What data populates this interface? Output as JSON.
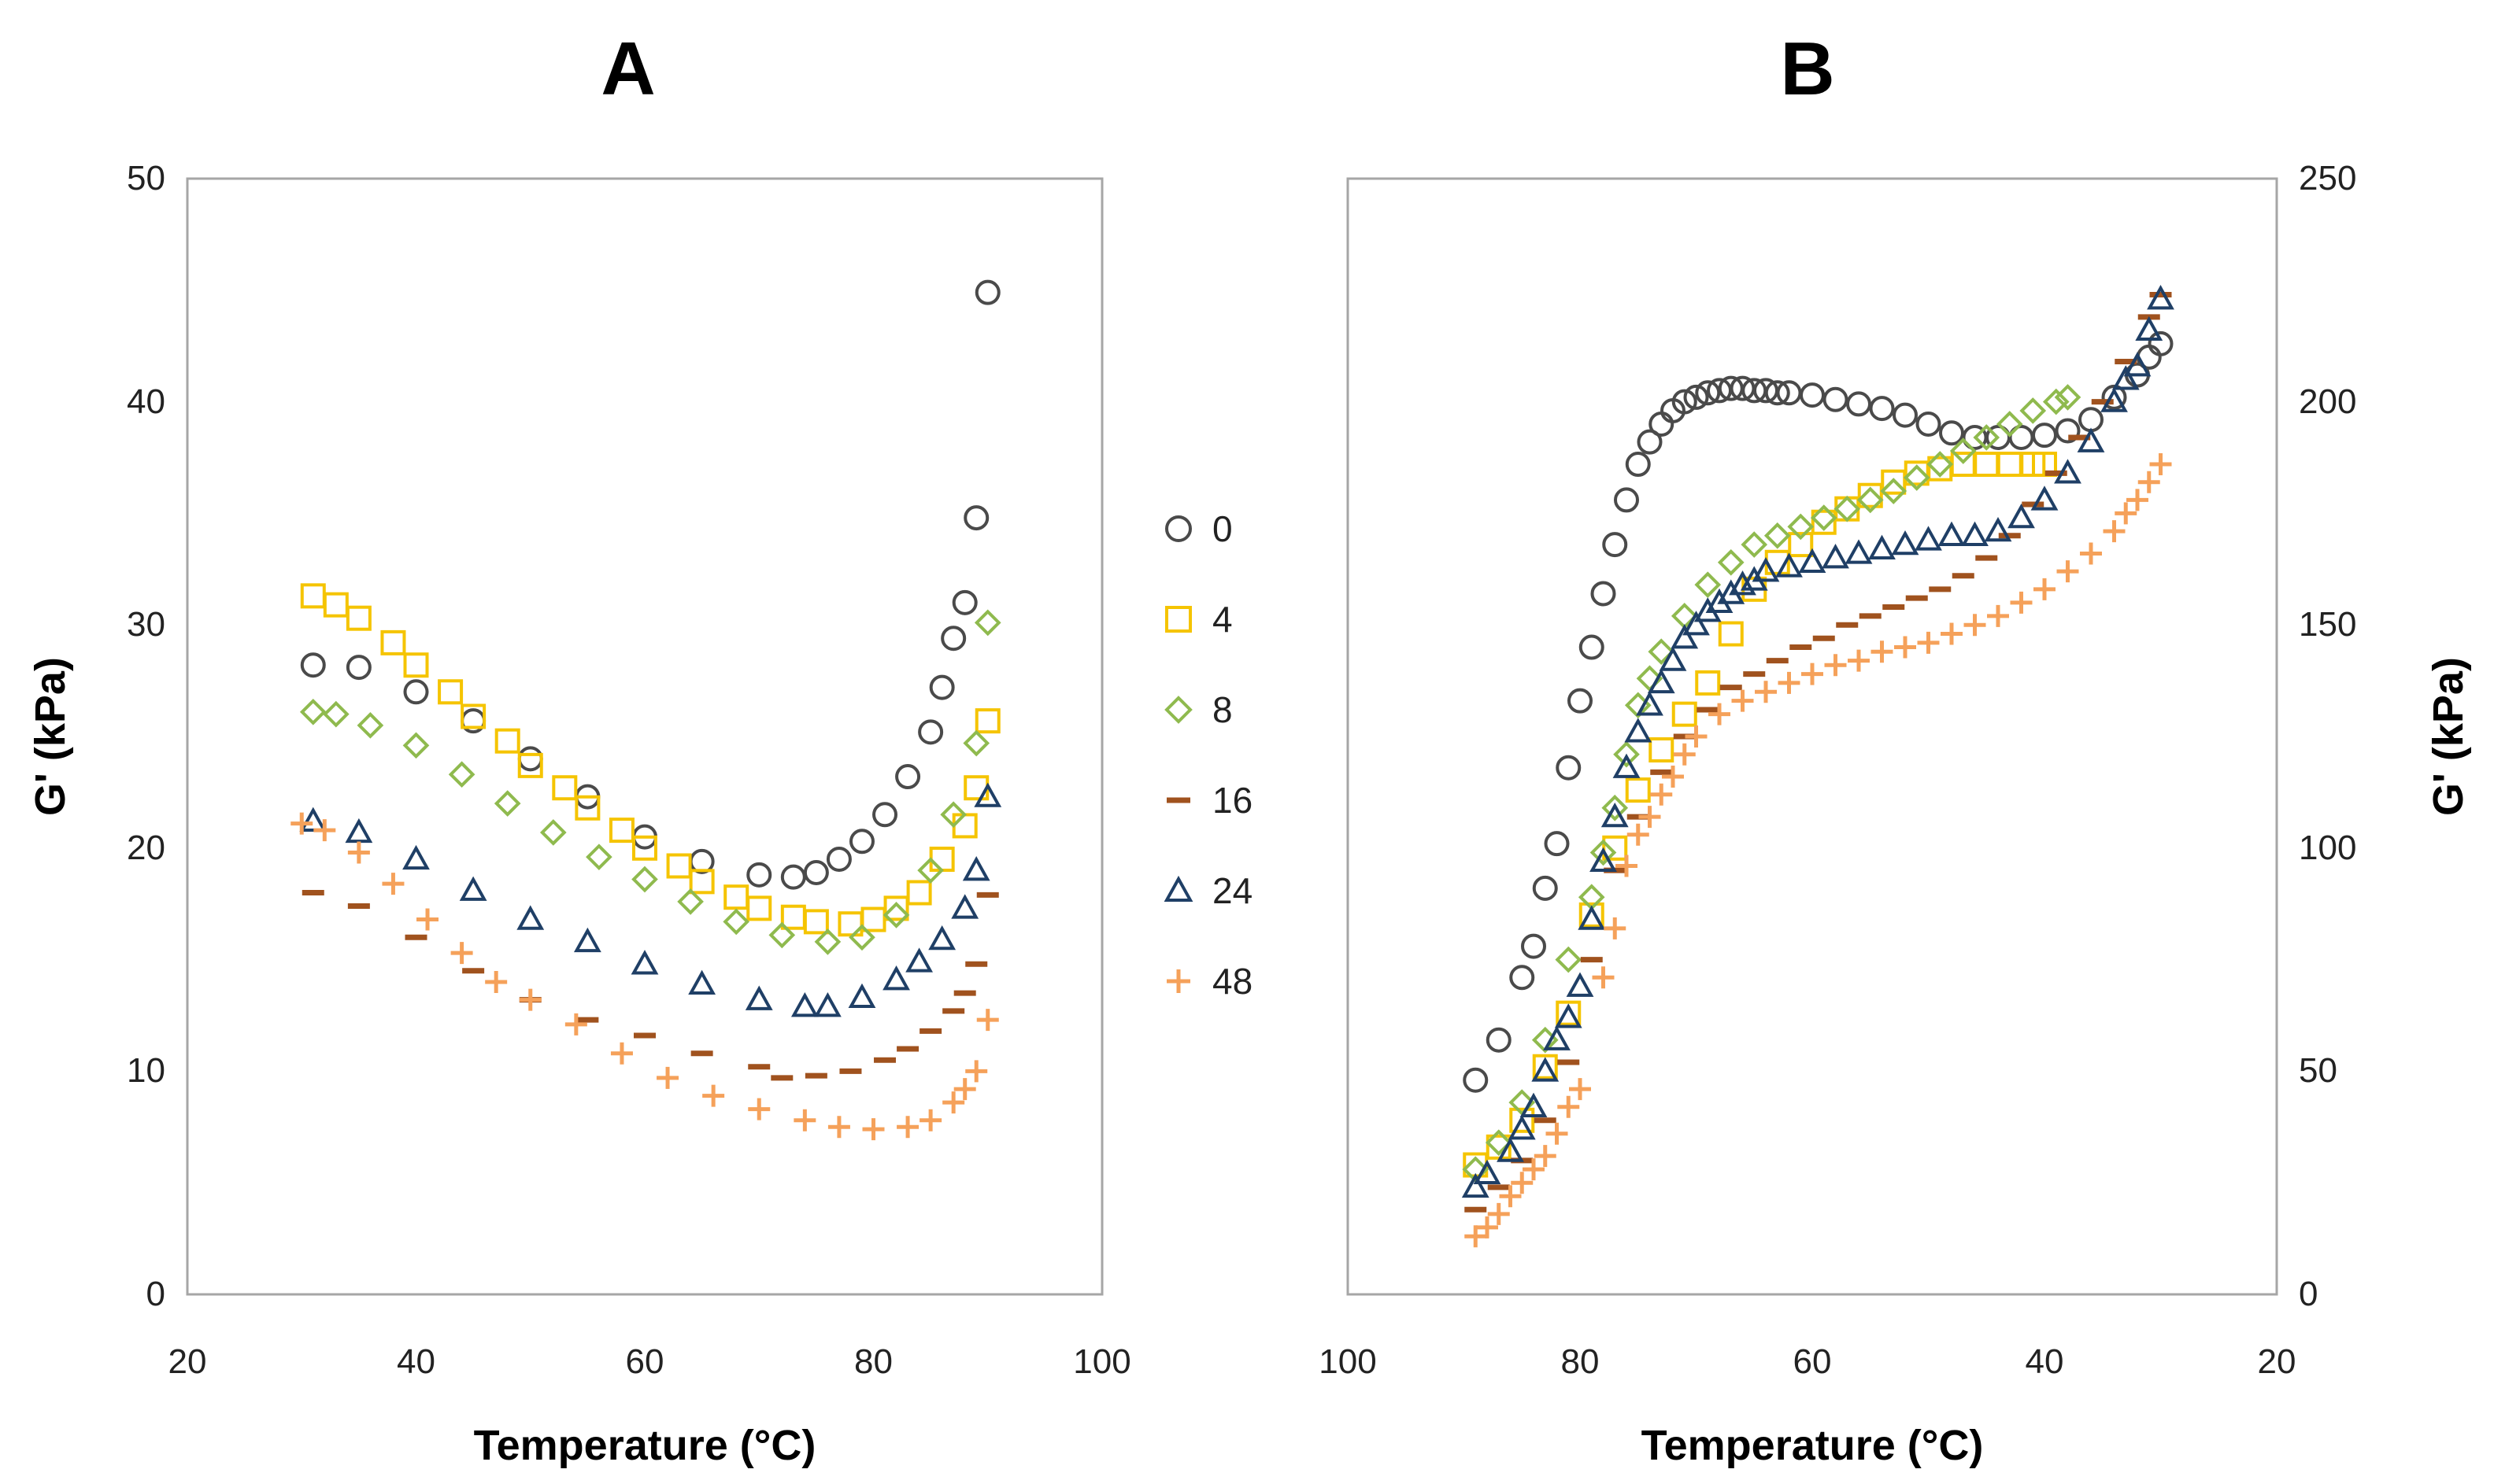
{
  "chart_data": [
    {
      "id": "A",
      "type": "scatter",
      "title": "A",
      "xlabel": "Temperature (°C)",
      "ylabel": "G' (kPa)",
      "xlim": [
        20,
        100
      ],
      "ylim": [
        0,
        50
      ],
      "xticks": [
        "20",
        "40",
        "60",
        "80",
        "100"
      ],
      "yticks": [
        "0",
        "10",
        "20",
        "30",
        "40",
        "50"
      ],
      "series": [
        {
          "name": "0",
          "x": [
            31,
            35,
            40,
            45,
            50,
            55,
            60,
            65,
            70,
            73,
            75,
            77,
            79,
            81,
            83,
            85,
            86,
            87,
            88,
            89,
            90
          ],
          "y": [
            28.2,
            28.1,
            27.0,
            25.7,
            24.0,
            22.3,
            20.5,
            19.4,
            18.8,
            18.7,
            18.9,
            19.5,
            20.3,
            21.5,
            23.2,
            25.2,
            27.2,
            29.4,
            31.0,
            34.8,
            44.9
          ]
        },
        {
          "name": "4",
          "x": [
            31,
            33,
            35,
            38,
            40,
            43,
            45,
            48,
            50,
            53,
            55,
            58,
            60,
            63,
            65,
            68,
            70,
            73,
            75,
            78,
            80,
            82,
            84,
            86,
            88,
            89,
            90
          ],
          "y": [
            31.3,
            30.9,
            30.3,
            29.2,
            28.2,
            27.0,
            25.9,
            24.8,
            23.7,
            22.7,
            21.8,
            20.8,
            20.0,
            19.2,
            18.5,
            17.8,
            17.3,
            16.9,
            16.7,
            16.6,
            16.8,
            17.3,
            18.0,
            19.5,
            21.0,
            22.7,
            25.7
          ]
        },
        {
          "name": "8",
          "x": [
            31,
            33,
            36,
            40,
            44,
            48,
            52,
            56,
            60,
            64,
            68,
            72,
            76,
            79,
            82,
            85,
            87,
            89,
            90
          ],
          "y": [
            26.1,
            26.0,
            25.5,
            24.6,
            23.3,
            22.0,
            20.7,
            19.6,
            18.6,
            17.6,
            16.7,
            16.1,
            15.8,
            16.0,
            17.0,
            19.0,
            21.5,
            24.7,
            30.1
          ]
        },
        {
          "name": "16",
          "x": [
            31,
            35,
            40,
            45,
            50,
            55,
            60,
            65,
            70,
            72,
            75,
            78,
            81,
            83,
            85,
            87,
            88,
            89,
            90
          ],
          "y": [
            18.0,
            17.4,
            16.0,
            14.5,
            13.2,
            12.3,
            11.6,
            10.8,
            10.2,
            9.7,
            9.8,
            10.0,
            10.5,
            11.0,
            11.8,
            12.7,
            13.5,
            14.8,
            17.9
          ]
        },
        {
          "name": "24",
          "x": [
            31,
            35,
            40,
            45,
            50,
            55,
            60,
            65,
            70,
            74,
            76,
            79,
            82,
            84,
            86,
            88,
            89,
            90
          ],
          "y": [
            21.2,
            20.7,
            19.5,
            18.1,
            16.8,
            15.8,
            14.8,
            13.9,
            13.2,
            12.9,
            12.9,
            13.3,
            14.1,
            14.9,
            15.9,
            17.3,
            19.0,
            22.3
          ]
        },
        {
          "name": "48",
          "x": [
            30,
            32,
            35,
            38,
            41,
            44,
            47,
            50,
            54,
            58,
            62,
            66,
            70,
            74,
            77,
            80,
            83,
            85,
            87,
            88,
            89,
            90
          ],
          "y": [
            21.1,
            20.8,
            19.8,
            18.4,
            16.8,
            15.3,
            14.0,
            13.2,
            12.1,
            10.8,
            9.7,
            8.9,
            8.3,
            7.8,
            7.5,
            7.4,
            7.5,
            7.8,
            8.6,
            9.2,
            10.0,
            12.3
          ]
        }
      ]
    },
    {
      "id": "B",
      "type": "scatter",
      "title": "B",
      "xlabel": "Temperature (°C)",
      "ylabel": "G' (kPa)",
      "xlim": [
        100,
        20
      ],
      "ylim": [
        0,
        250
      ],
      "xticks": [
        "100",
        "80",
        "60",
        "40",
        "20"
      ],
      "yticks": [
        "0",
        "50",
        "100",
        "150",
        "200",
        "250"
      ],
      "series": [
        {
          "name": "0",
          "x": [
            89,
            87,
            85,
            84,
            83,
            82,
            81,
            80,
            79,
            78,
            77,
            76,
            75,
            74,
            73,
            72,
            71,
            70,
            69,
            68,
            67,
            66,
            65,
            64,
            63,
            62,
            60,
            58,
            56,
            54,
            52,
            50,
            48,
            46,
            44,
            42,
            40,
            38,
            36,
            34,
            32,
            31,
            30
          ],
          "y": [
            48,
            57,
            71,
            78,
            91,
            101,
            118,
            133,
            145,
            157,
            168,
            178,
            186,
            191,
            195,
            198,
            200,
            201,
            202,
            202.5,
            203,
            203,
            202.5,
            202.5,
            202,
            202,
            201.5,
            200.5,
            199.5,
            198.5,
            197,
            195,
            193,
            192,
            192,
            192,
            192.5,
            193.5,
            196,
            201,
            206,
            210,
            213
          ]
        },
        {
          "name": "4",
          "x": [
            89,
            87,
            85,
            83,
            81,
            79,
            77,
            75,
            73,
            71,
            69,
            67,
            65,
            63,
            61,
            59,
            57,
            55,
            53,
            51,
            49,
            47,
            45,
            43,
            41,
            40
          ],
          "y": [
            29,
            33,
            39,
            51,
            63,
            85,
            100,
            113,
            122,
            130,
            137,
            148,
            158,
            164,
            168,
            173,
            176,
            179,
            182,
            184,
            185,
            186,
            186,
            186,
            186,
            186
          ]
        },
        {
          "name": "8",
          "x": [
            89,
            87,
            85,
            83,
            81,
            79,
            78,
            77,
            76,
            75,
            74,
            73,
            71,
            69,
            67,
            65,
            63,
            61,
            59,
            57,
            55,
            53,
            51,
            49,
            47,
            45,
            43,
            41,
            39,
            38
          ],
          "y": [
            28,
            34,
            43,
            57,
            75,
            89,
            99,
            109,
            121,
            132,
            138,
            144,
            152,
            159,
            164,
            168,
            170,
            172,
            174,
            176,
            178,
            180,
            183,
            186,
            189,
            192,
            195,
            198,
            200,
            201
          ]
        },
        {
          "name": "16",
          "x": [
            89,
            87,
            85,
            83,
            81,
            79,
            77,
            75,
            73,
            71,
            69,
            67,
            65,
            63,
            61,
            59,
            57,
            55,
            53,
            51,
            49,
            47,
            45,
            43,
            41,
            39,
            37,
            35,
            33,
            31,
            30
          ],
          "y": [
            19,
            24,
            30,
            39,
            52,
            75,
            95,
            107,
            117,
            125,
            131,
            136,
            139,
            142,
            145,
            147,
            150,
            152,
            154,
            156,
            158,
            161,
            165,
            170,
            177,
            184,
            192,
            200,
            209,
            219,
            224
          ]
        },
        {
          "name": "24",
          "x": [
            89,
            88,
            86,
            85,
            84,
            83,
            82,
            81,
            80,
            79,
            78,
            77,
            76,
            75,
            74,
            73,
            72,
            71,
            70,
            69,
            68,
            67,
            66,
            65,
            64,
            62,
            60,
            58,
            56,
            54,
            52,
            50,
            48,
            46,
            44,
            42,
            40,
            38,
            36,
            34,
            33,
            32,
            31,
            30
          ],
          "y": [
            24,
            27,
            32,
            37,
            42,
            50,
            57,
            62,
            69,
            84,
            97,
            107,
            118,
            126,
            132,
            137,
            142,
            147,
            150,
            153,
            155,
            157,
            159,
            160,
            162,
            163,
            164,
            165,
            166,
            167,
            168,
            169,
            170,
            170,
            171,
            174,
            178,
            184,
            191,
            200,
            205,
            208,
            216,
            223
          ]
        },
        {
          "name": "48",
          "x": [
            89,
            88,
            87,
            86,
            85,
            84,
            83,
            82,
            81,
            80,
            78,
            77,
            76,
            75,
            74,
            73,
            72,
            71,
            70,
            68,
            66,
            64,
            62,
            60,
            58,
            56,
            54,
            52,
            50,
            48,
            46,
            44,
            42,
            40,
            38,
            36,
            34,
            33,
            32,
            31,
            30
          ],
          "y": [
            13,
            15,
            18,
            22,
            25,
            28,
            31,
            36,
            42,
            46,
            71,
            82,
            96,
            103,
            107,
            112,
            116,
            121,
            125,
            130,
            133,
            135,
            137,
            139,
            141,
            142,
            144,
            145,
            146,
            148,
            150,
            152,
            155,
            158,
            162,
            166,
            171,
            175,
            178,
            182,
            186
          ]
        }
      ]
    }
  ],
  "legend": {
    "items": [
      {
        "label": "0",
        "marker": "circle",
        "color": "#4a4a4a"
      },
      {
        "label": "4",
        "marker": "square",
        "color": "#f5c400"
      },
      {
        "label": "8",
        "marker": "diamond",
        "color": "#8fba4e"
      },
      {
        "label": "16",
        "marker": "dash",
        "color": "#a0521e"
      },
      {
        "label": "24",
        "marker": "triangle",
        "color": "#1f3f66"
      },
      {
        "label": "48",
        "marker": "plus",
        "color": "#f5a15a"
      }
    ]
  }
}
